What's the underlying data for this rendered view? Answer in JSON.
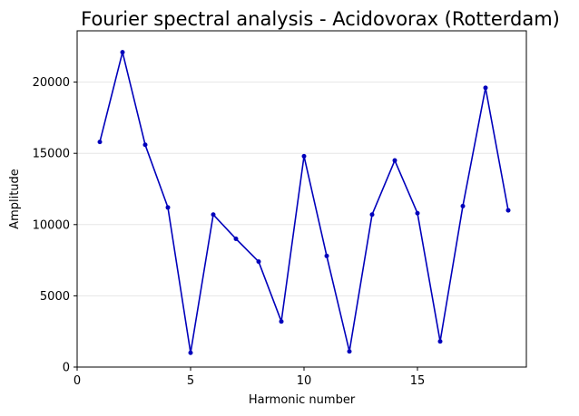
{
  "chart_data": {
    "type": "line",
    "title": "Fourier spectral analysis - Acidovorax (Rotterdam)",
    "xlabel": "Harmonic number",
    "ylabel": "Amplitude",
    "xlim": [
      0,
      19.8
    ],
    "ylim": [
      0,
      23600
    ],
    "xticks": [
      0,
      5,
      10,
      15
    ],
    "yticks": [
      0,
      5000,
      10000,
      15000,
      20000
    ],
    "grid": "y-only",
    "legend": "none",
    "series": [
      {
        "color": "#0000bb",
        "x": [
          1,
          2,
          3,
          4,
          5,
          6,
          7,
          8,
          9,
          10,
          11,
          12,
          13,
          14,
          15,
          16,
          17,
          18,
          19
        ],
        "y": [
          15800,
          22100,
          15600,
          11200,
          1000,
          10700,
          9000,
          7400,
          3200,
          14800,
          7800,
          1100,
          10700,
          14500,
          10800,
          1800,
          11300,
          19600,
          11000
        ]
      }
    ]
  }
}
